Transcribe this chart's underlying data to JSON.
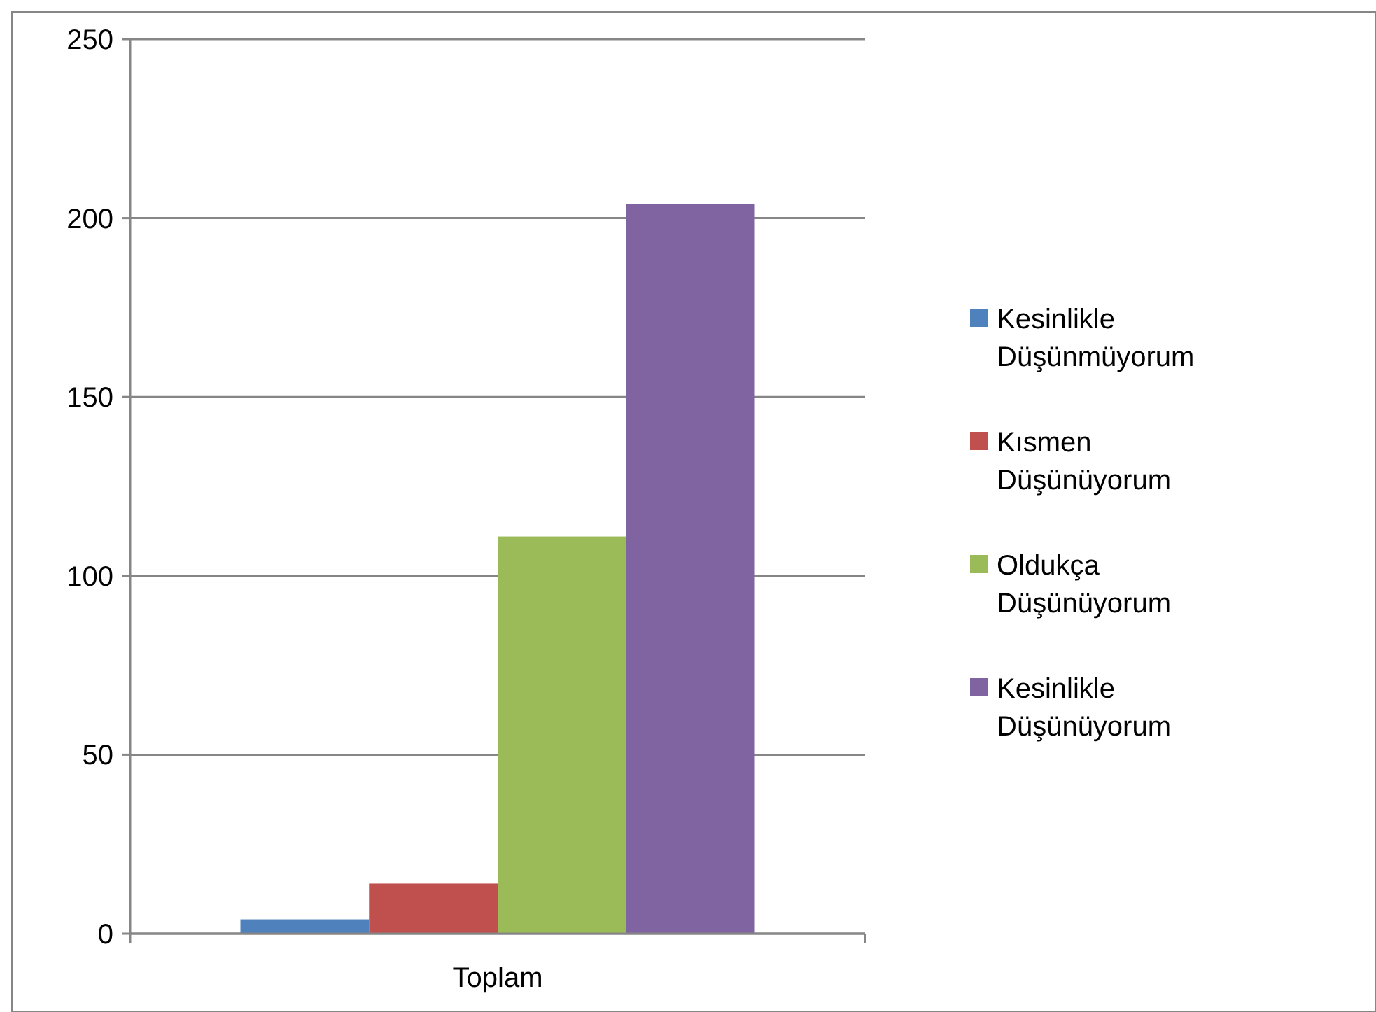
{
  "chart_data": {
    "type": "bar",
    "categories": [
      "Toplam"
    ],
    "series": [
      {
        "name": "Kesinlikle Düşünmüyorum",
        "color": "#4f81bd",
        "values": [
          4
        ]
      },
      {
        "name": "Kısmen Düşünüyorum",
        "color": "#c0504d",
        "values": [
          14
        ]
      },
      {
        "name": "Oldukça Düşünüyorum",
        "color": "#9bbb59",
        "values": [
          111
        ]
      },
      {
        "name": "Kesinlikle Düşünüyorum",
        "color": "#8064a2",
        "values": [
          204
        ]
      }
    ],
    "ylim": [
      0,
      250
    ],
    "yticks": [
      0,
      50,
      100,
      150,
      200,
      250
    ],
    "grid": "y",
    "legend": "right"
  }
}
